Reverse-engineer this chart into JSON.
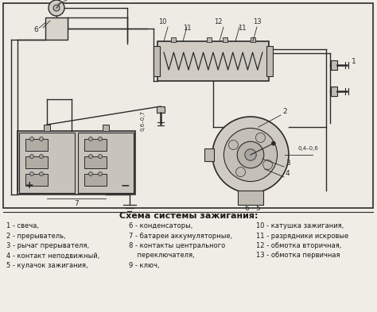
{
  "title": "Схема системы зажигания:",
  "bg_color": "#f0ede6",
  "diagram_bg": "#eeebe4",
  "line_color": "#2a2a2a",
  "text_color": "#1a1a1a",
  "legend_items_col1": [
    "1 - свеча,",
    "2 - прерыватель,",
    "3 - рычаг прерывателя,",
    "4 - контакт неподвижный,",
    "5 - кулачок зажигания,"
  ],
  "legend_items_col2": [
    "6 - конденсаторы,",
    "7 - батареи аккумуляторные,",
    "8 - контакты центрального",
    "    переключателя,",
    "9 - ключ,"
  ],
  "legend_items_col3": [
    "10 - катушка зажигания,",
    "11 - разрядники искровые",
    "12 - обмотка вторичная,",
    "13 - обмотка первичная"
  ],
  "fig_width": 4.74,
  "fig_height": 3.93,
  "dpi": 100
}
